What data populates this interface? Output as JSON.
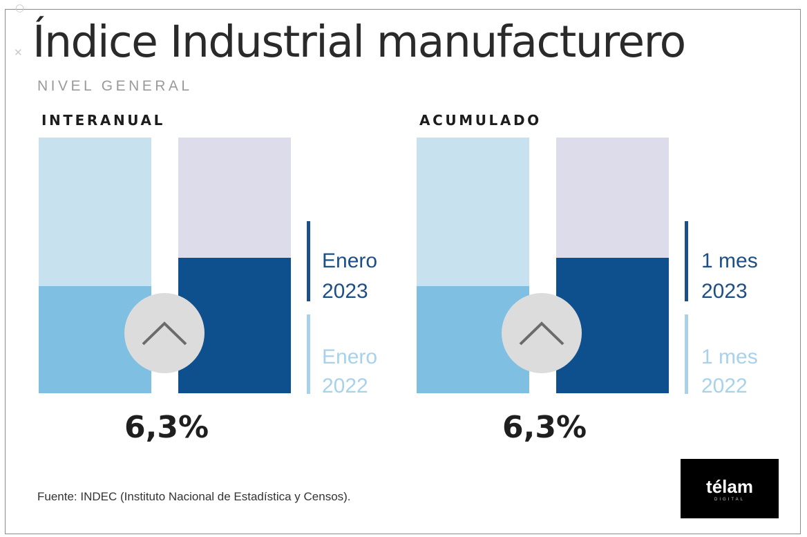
{
  "title": "Índice Industrial manufacturero",
  "subtitle": "NIVEL GENERAL",
  "colors": {
    "previous_bar_bg": "#c8e1ef",
    "previous_bar_fill": "#7fbfe2",
    "current_bar_bg": "#dcdcea",
    "current_bar_fill": "#0e4f8d",
    "current_label": "#1b4f85",
    "previous_label": "#a7d2ea"
  },
  "icons": {
    "corner_top": "dot-icon",
    "corner_side": "close-icon",
    "trend": "chevron-up-icon"
  },
  "panels": [
    {
      "title": "INTERANUAL",
      "current_label_line1": "Enero",
      "current_label_line2": "2023",
      "previous_label_line1": "Enero",
      "previous_label_line2": "2022",
      "value": "6,3%"
    },
    {
      "title": "ACUMULADO",
      "current_label_line1": "1 mes",
      "current_label_line2": "2023",
      "previous_label_line1": "1 mes",
      "previous_label_line2": "2022",
      "value": "6,3%"
    }
  ],
  "chart_data": [
    {
      "type": "bar",
      "title": "INTERANUAL",
      "categories": [
        "Enero 2022",
        "Enero 2023"
      ],
      "values": [
        0.42,
        0.53
      ],
      "annotation": "6,3%",
      "ylim": [
        0,
        1
      ]
    },
    {
      "type": "bar",
      "title": "ACUMULADO",
      "categories": [
        "1 mes 2022",
        "1 mes 2023"
      ],
      "values": [
        0.42,
        0.53
      ],
      "annotation": "6,3%",
      "ylim": [
        0,
        1
      ]
    }
  ],
  "source": "Fuente: INDEC (Instituto Nacional de Estadística y Censos).",
  "logo": {
    "name": "télam",
    "tagline": "DIGITAL"
  }
}
